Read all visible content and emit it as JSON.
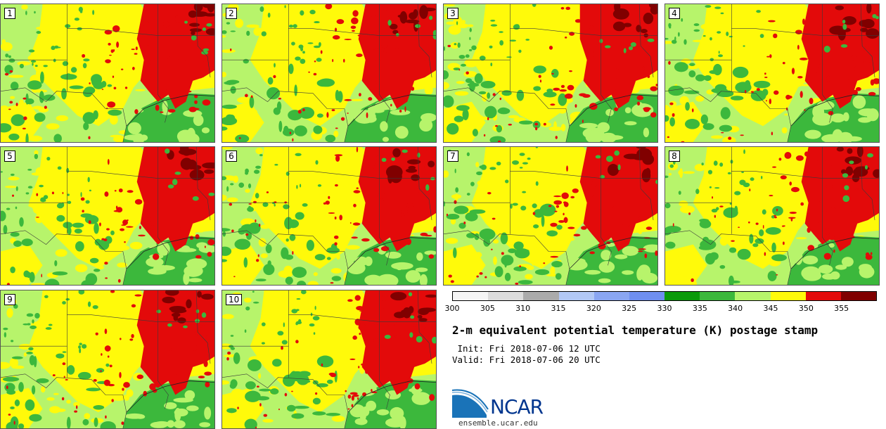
{
  "panels": [
    {
      "label": "1"
    },
    {
      "label": "2"
    },
    {
      "label": "3"
    },
    {
      "label": "4"
    },
    {
      "label": "5"
    },
    {
      "label": "6"
    },
    {
      "label": "7"
    },
    {
      "label": "8"
    },
    {
      "label": "9"
    },
    {
      "label": "10"
    }
  ],
  "colorbar": {
    "ticks": [
      "300",
      "305",
      "310",
      "315",
      "320",
      "325",
      "330",
      "335",
      "340",
      "345",
      "350",
      "355"
    ],
    "colors": [
      "#f5f5f5",
      "#dcdcdc",
      "#ababab",
      "#b2c8f5",
      "#8aa6f2",
      "#6f8ff0",
      "#0a9a0a",
      "#3cb83c",
      "#b7f46b",
      "#fffa0a",
      "#e30a0a",
      "#800000"
    ]
  },
  "title": "2-m equivalent potential temperature (K) postage stamp",
  "init": " Init: Fri 2018-07-06 12 UTC",
  "valid": "Valid: Fri 2018-07-06 20 UTC",
  "logo": {
    "name": "NCAR",
    "url": "ensemble.ucar.edu"
  }
}
